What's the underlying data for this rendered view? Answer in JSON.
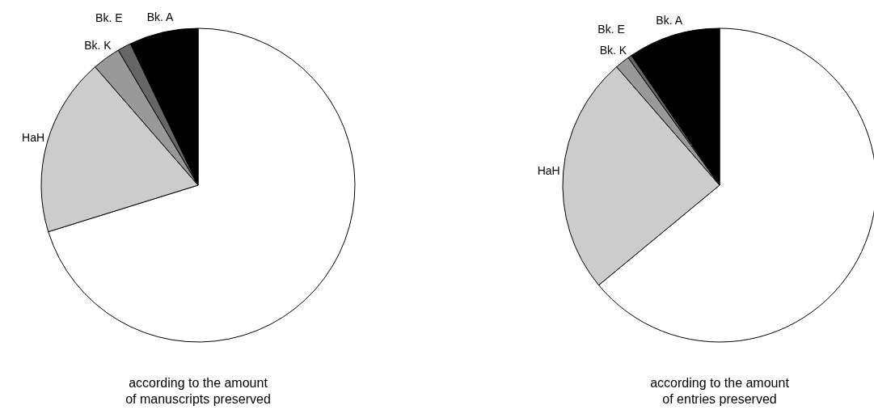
{
  "chart_data": [
    {
      "type": "pie",
      "title": "according to the amount\nof manuscripts preserved",
      "categories": [
        null,
        "HaH",
        "Bk. K",
        "Bk. E",
        "Bk. A"
      ],
      "values": [
        70.2,
        18.4,
        2.9,
        1.4,
        7.1
      ],
      "colors": [
        "#ffffff",
        "#cccccc",
        "#999999",
        "#666666",
        "#000000"
      ]
    },
    {
      "type": "pie",
      "title": "according to the amount\nof entries preserved",
      "categories": [
        null,
        "HaH",
        "Bk. K",
        "Bk. E",
        "Bk. A"
      ],
      "values": [
        64.0,
        24.6,
        1.5,
        0.4,
        9.5
      ],
      "colors": [
        "#ffffff",
        "#cccccc",
        "#999999",
        "#666666",
        "#000000"
      ]
    }
  ]
}
